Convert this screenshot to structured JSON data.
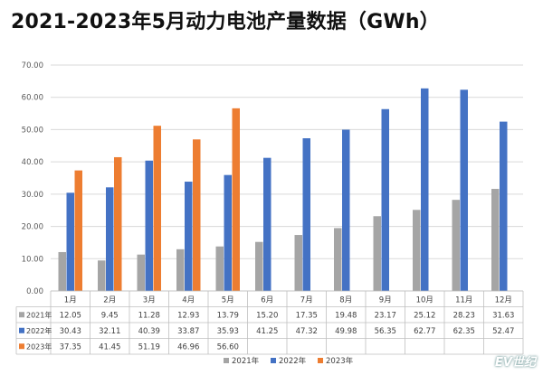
{
  "title": "2021-2023年5月动力电池产量数据（GWh）",
  "watermark": "EV世纪",
  "colors": {
    "2021年": "#a5a5a5",
    "2022年": "#4472c4",
    "2023年": "#ed7d31"
  },
  "chart_data": {
    "type": "bar",
    "title": "2021-2023年5月动力电池产量数据（GWh）",
    "categories": [
      "1月",
      "2月",
      "3月",
      "4月",
      "5月",
      "6月",
      "7月",
      "8月",
      "9月",
      "10月",
      "11月",
      "12月"
    ],
    "ylim": [
      0,
      70
    ],
    "yticks": [
      "0.00",
      "10.00",
      "20.00",
      "30.00",
      "40.00",
      "50.00",
      "60.00",
      "70.00"
    ],
    "grid": true,
    "legend": "bottom",
    "data_table": true,
    "series": [
      {
        "name": "2021年",
        "values": [
          12.05,
          9.45,
          11.28,
          12.93,
          13.79,
          15.2,
          17.35,
          19.48,
          23.17,
          25.12,
          28.23,
          31.63
        ],
        "labels": [
          "12.05",
          "9.45",
          "11.28",
          "12.93",
          "13.79",
          "15.20",
          "17.35",
          "19.48",
          "23.17",
          "25.12",
          "28.23",
          "31.63"
        ]
      },
      {
        "name": "2022年",
        "values": [
          30.43,
          32.11,
          40.39,
          33.87,
          35.93,
          41.25,
          47.32,
          49.98,
          56.35,
          62.77,
          62.35,
          52.47
        ],
        "labels": [
          "30.43",
          "32.11",
          "40.39",
          "33.87",
          "35.93",
          "41.25",
          "47.32",
          "49.98",
          "56.35",
          "62.77",
          "62.35",
          "52.47"
        ]
      },
      {
        "name": "2023年",
        "values": [
          37.35,
          41.45,
          51.19,
          46.96,
          56.6,
          null,
          null,
          null,
          null,
          null,
          null,
          null
        ],
        "labels": [
          "37.35",
          "41.45",
          "51.19",
          "46.96",
          "56.60",
          "",
          "",
          "",
          "",
          "",
          "",
          ""
        ]
      }
    ]
  }
}
